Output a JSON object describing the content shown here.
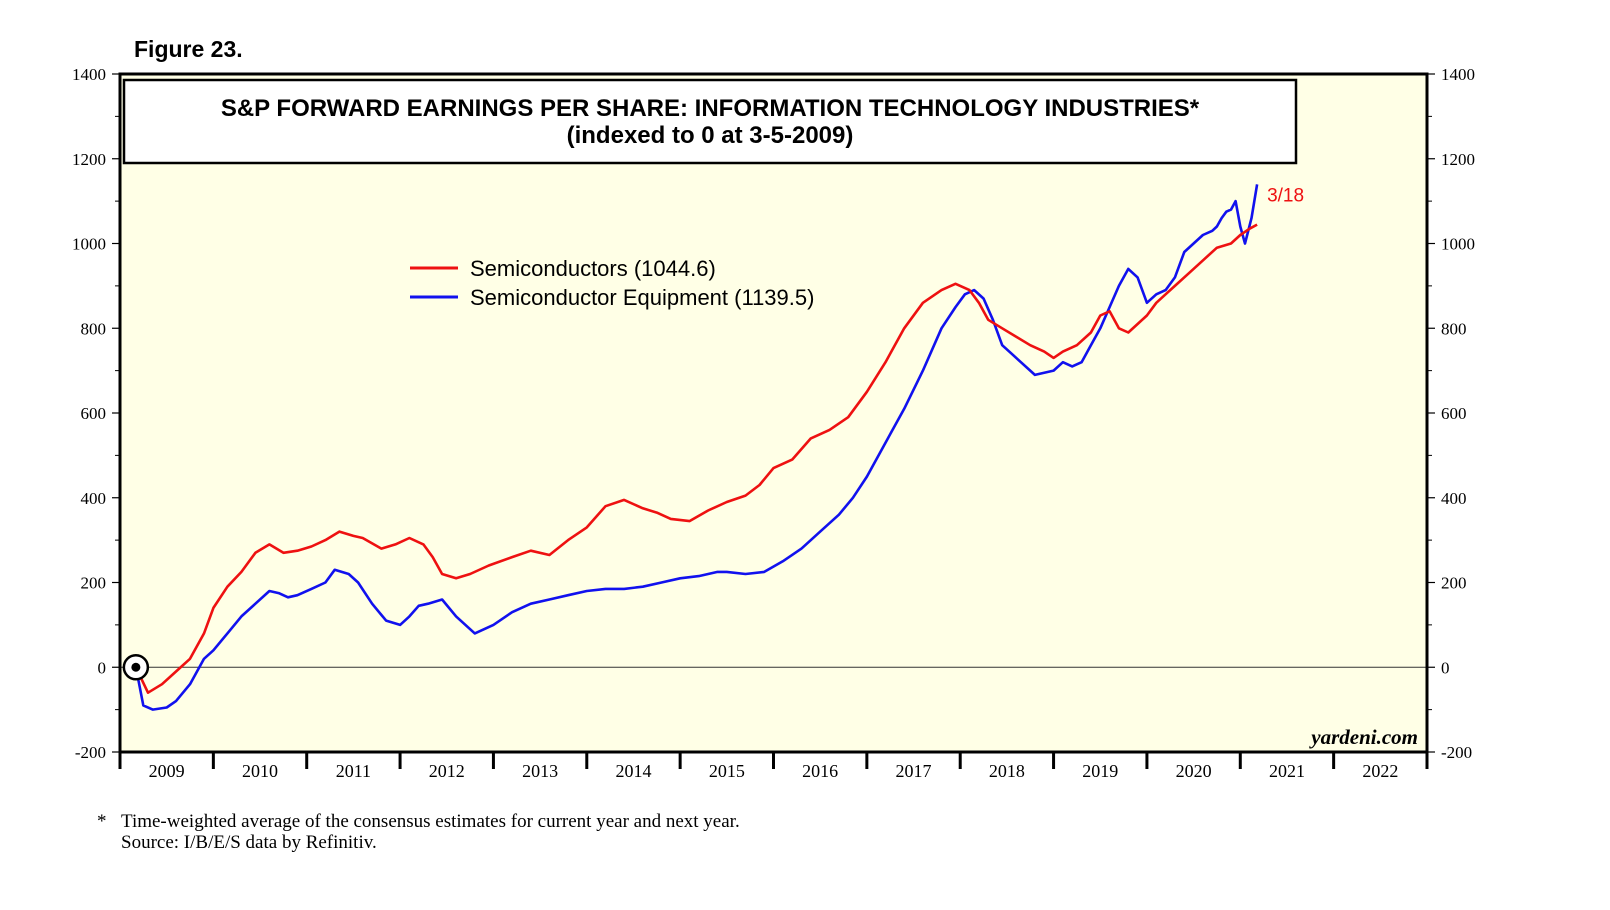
{
  "figure_label": "Figure 23.",
  "footnote": {
    "marker": "*",
    "line1": "Time-weighted average of the consensus estimates for current year and next year.",
    "line2": "Source: I/B/E/S data by Refinitiv."
  },
  "watermark": "yardeni.com",
  "colors": {
    "semis": "#ee1111",
    "equipment": "#1111ee",
    "plot_bg": "#ffffe6"
  },
  "chart_data": {
    "type": "line",
    "title": "S&P FORWARD EARNINGS PER SHARE: INFORMATION TECHNOLOGY INDUSTRIES*",
    "subtitle": "(indexed to 0 at 3-5-2009)",
    "xlabel": "",
    "ylabel": "",
    "x_range": [
      2009,
      2023
    ],
    "ylim": [
      -200,
      1400
    ],
    "y_ticks": [
      "1400",
      "1200",
      "1000",
      "800",
      "600",
      "400",
      "200",
      "0",
      "-200"
    ],
    "y_tick_values": [
      1400,
      1200,
      1000,
      800,
      600,
      400,
      200,
      0,
      -200
    ],
    "x_tick_labels": [
      "2009",
      "2010",
      "2011",
      "2012",
      "2013",
      "2014",
      "2015",
      "2016",
      "2017",
      "2018",
      "2019",
      "2020",
      "2021",
      "2022"
    ],
    "grid": false,
    "legend_position": "upper-left",
    "latest_date_label": "3/18",
    "origin_marker": {
      "x": 2009.17,
      "y": 0
    },
    "series": [
      {
        "name": "Semiconductors",
        "legend_label": "Semiconductors (1044.6)",
        "last_value": 1044.6,
        "x": [
          2009.17,
          2009.3,
          2009.45,
          2009.6,
          2009.75,
          2009.9,
          2010.0,
          2010.15,
          2010.3,
          2010.45,
          2010.6,
          2010.75,
          2010.9,
          2011.05,
          2011.2,
          2011.35,
          2011.5,
          2011.6,
          2011.8,
          2011.95,
          2012.1,
          2012.25,
          2012.35,
          2012.45,
          2012.6,
          2012.75,
          2012.95,
          2013.2,
          2013.4,
          2013.6,
          2013.8,
          2014.0,
          2014.2,
          2014.4,
          2014.6,
          2014.75,
          2014.9,
          2015.1,
          2015.3,
          2015.5,
          2015.7,
          2015.85,
          2016.0,
          2016.2,
          2016.4,
          2016.6,
          2016.8,
          2017.0,
          2017.2,
          2017.4,
          2017.6,
          2017.8,
          2017.95,
          2018.1,
          2018.2,
          2018.3,
          2018.45,
          2018.6,
          2018.75,
          2018.9,
          2019.0,
          2019.1,
          2019.25,
          2019.4,
          2019.5,
          2019.6,
          2019.7,
          2019.8,
          2019.9,
          2020.0,
          2020.1,
          2020.2,
          2020.3,
          2020.45,
          2020.6,
          2020.75,
          2020.9,
          2021.0,
          2021.1,
          2021.18
        ],
        "values": [
          0,
          -60,
          -40,
          -10,
          20,
          80,
          140,
          190,
          225,
          270,
          290,
          270,
          275,
          285,
          300,
          320,
          310,
          305,
          280,
          290,
          305,
          290,
          260,
          220,
          210,
          220,
          240,
          260,
          275,
          265,
          300,
          330,
          380,
          395,
          375,
          365,
          350,
          345,
          370,
          390,
          405,
          430,
          470,
          490,
          540,
          560,
          590,
          650,
          720,
          800,
          860,
          890,
          905,
          890,
          860,
          820,
          800,
          780,
          760,
          745,
          730,
          745,
          760,
          790,
          830,
          840,
          800,
          790,
          810,
          830,
          860,
          880,
          900,
          930,
          960,
          990,
          1000,
          1020,
          1035,
          1044.6
        ]
      },
      {
        "name": "Semiconductor Equipment",
        "legend_label": "Semiconductor Equipment (1139.5)",
        "last_value": 1139.5,
        "x": [
          2009.17,
          2009.25,
          2009.35,
          2009.5,
          2009.6,
          2009.75,
          2009.9,
          2010.0,
          2010.15,
          2010.3,
          2010.45,
          2010.6,
          2010.7,
          2010.8,
          2010.9,
          2011.05,
          2011.2,
          2011.3,
          2011.45,
          2011.55,
          2011.7,
          2011.85,
          2012.0,
          2012.1,
          2012.2,
          2012.3,
          2012.45,
          2012.6,
          2012.8,
          2013.0,
          2013.2,
          2013.4,
          2013.6,
          2013.8,
          2014.0,
          2014.2,
          2014.4,
          2014.6,
          2014.8,
          2015.0,
          2015.2,
          2015.4,
          2015.5,
          2015.7,
          2015.9,
          2016.1,
          2016.3,
          2016.5,
          2016.7,
          2016.85,
          2017.0,
          2017.2,
          2017.4,
          2017.6,
          2017.8,
          2017.95,
          2018.05,
          2018.15,
          2018.25,
          2018.35,
          2018.45,
          2018.55,
          2018.65,
          2018.8,
          2019.0,
          2019.1,
          2019.2,
          2019.3,
          2019.4,
          2019.5,
          2019.6,
          2019.7,
          2019.8,
          2019.9,
          2020.0,
          2020.1,
          2020.2,
          2020.3,
          2020.4,
          2020.5,
          2020.6,
          2020.7,
          2020.75,
          2020.8,
          2020.85,
          2020.9,
          2020.95,
          2021.0,
          2021.05,
          2021.12,
          2021.18
        ],
        "values": [
          0,
          -90,
          -100,
          -95,
          -80,
          -40,
          20,
          40,
          80,
          120,
          150,
          180,
          175,
          165,
          170,
          185,
          200,
          230,
          220,
          200,
          150,
          110,
          100,
          120,
          145,
          150,
          160,
          120,
          80,
          100,
          130,
          150,
          160,
          170,
          180,
          185,
          185,
          190,
          200,
          210,
          215,
          225,
          225,
          220,
          225,
          250,
          280,
          320,
          360,
          400,
          450,
          530,
          610,
          700,
          800,
          850,
          880,
          890,
          870,
          820,
          760,
          740,
          720,
          690,
          700,
          720,
          710,
          720,
          760,
          800,
          850,
          900,
          940,
          920,
          860,
          880,
          890,
          920,
          980,
          1000,
          1020,
          1030,
          1040,
          1060,
          1075,
          1080,
          1100,
          1040,
          1000,
          1060,
          1139.5
        ]
      }
    ]
  }
}
